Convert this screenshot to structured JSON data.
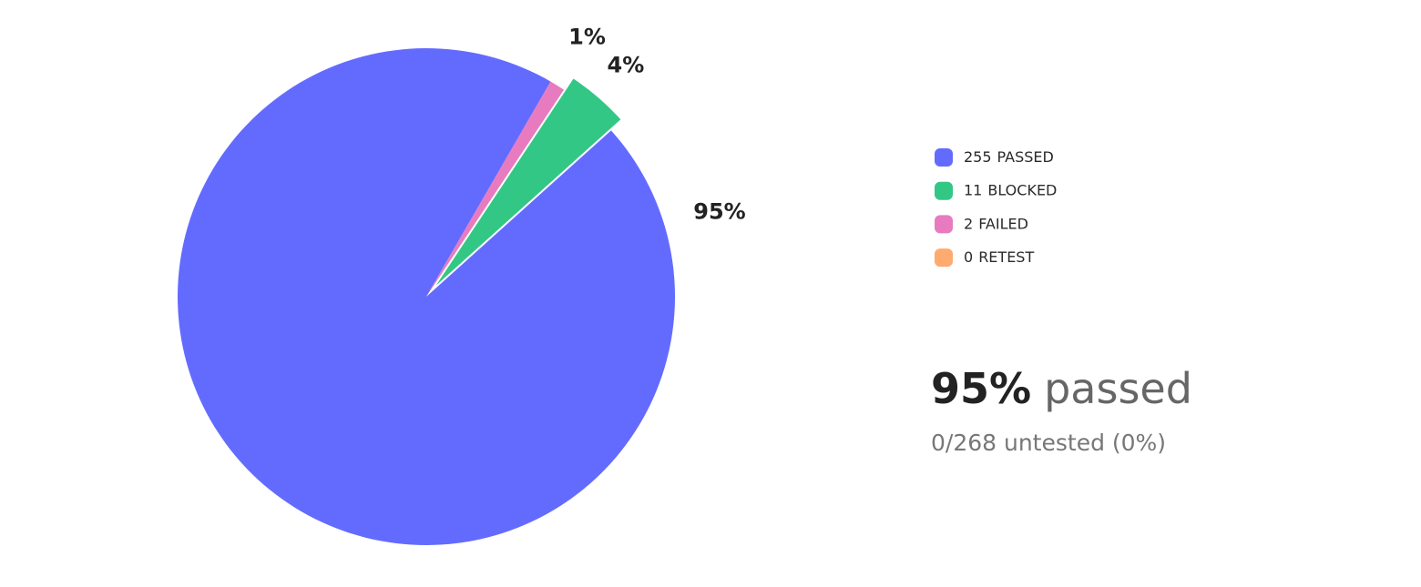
{
  "chart_data": {
    "type": "pie",
    "categories": [
      "PASSED",
      "BLOCKED",
      "FAILED",
      "RETEST"
    ],
    "counts": [
      255,
      11,
      2,
      0
    ],
    "values": [
      95,
      4,
      1,
      0
    ],
    "value_labels": [
      "95%",
      "4%",
      "1%",
      null
    ],
    "colors": [
      "#636bff",
      "#33c785",
      "#e87bbf",
      "#ffaa6e"
    ],
    "summary": {
      "value": "95%",
      "label": "passed",
      "detail": "0/268 untested (0%)"
    }
  }
}
